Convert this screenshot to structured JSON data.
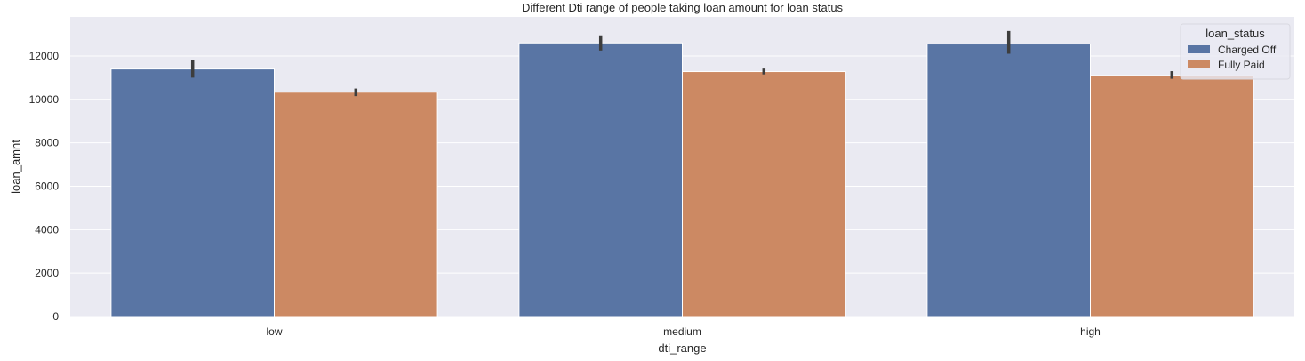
{
  "chart_data": {
    "type": "bar",
    "title": "Different Dti range of people taking loan amount for loan status",
    "xlabel": "dti_range",
    "ylabel": "loan_amnt",
    "categories": [
      "low",
      "medium",
      "high"
    ],
    "series": [
      {
        "name": "Charged Off",
        "color": "#5975a4",
        "values": [
          11400,
          12600,
          12550
        ],
        "ci": [
          [
            11000,
            11800
          ],
          [
            12250,
            12950
          ],
          [
            12100,
            13150
          ]
        ]
      },
      {
        "name": "Fully Paid",
        "color": "#cc8963",
        "values": [
          10330,
          11280,
          11100
        ],
        "ci": [
          [
            10150,
            10500
          ],
          [
            11150,
            11420
          ],
          [
            10950,
            11300
          ]
        ]
      }
    ],
    "ylim": [
      0,
      13800
    ],
    "yticks": [
      0,
      2000,
      4000,
      6000,
      8000,
      10000,
      12000
    ],
    "grid": true,
    "legend": {
      "title": "loan_status",
      "placement": "top-right"
    },
    "background": "#eaeaf2",
    "errorbar_color": "#3d3d3d"
  }
}
